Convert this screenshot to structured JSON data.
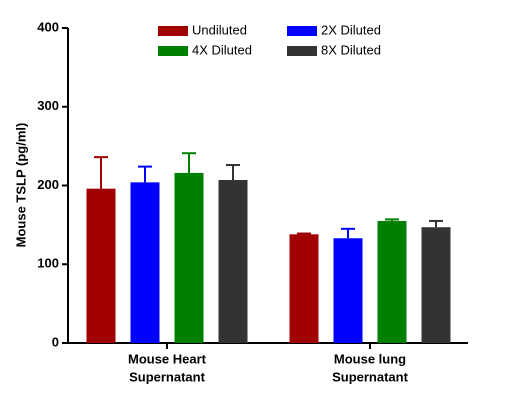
{
  "chart_data": {
    "type": "bar",
    "y_label": "Mouse TSLP (pg/ml)",
    "categories": [
      [
        "Mouse Heart",
        "Supernatant"
      ],
      [
        "Mouse lung",
        "Supernatant"
      ]
    ],
    "series": [
      {
        "name": "Undiluted",
        "color": "#a00000",
        "values": [
          196,
          138
        ],
        "errors": [
          40,
          1
        ]
      },
      {
        "name": "2X Diluted",
        "color": "#0000ff",
        "values": [
          204,
          133
        ],
        "errors": [
          20,
          12
        ]
      },
      {
        "name": "4X Diluted",
        "color": "#008000",
        "values": [
          216,
          155
        ],
        "errors": [
          25,
          2
        ]
      },
      {
        "name": "8X Diluted",
        "color": "#333333",
        "values": [
          207,
          147
        ],
        "errors": [
          19,
          8
        ]
      }
    ],
    "ylim": [
      0,
      400
    ],
    "yticks": [
      0,
      100,
      200,
      300,
      400
    ]
  }
}
